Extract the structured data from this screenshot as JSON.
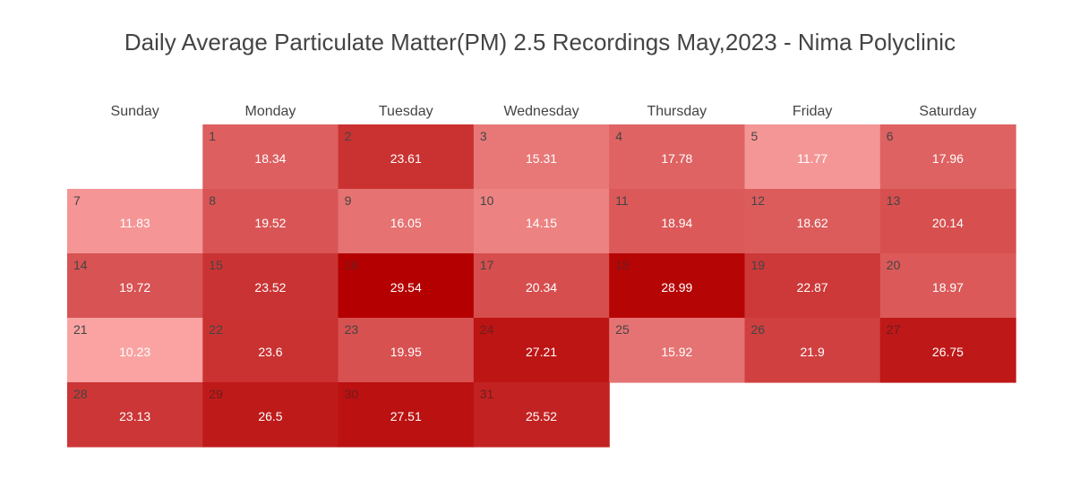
{
  "title": "Daily Average Particulate Matter(PM) 2.5 Recordings May,2023 - Nima Polyclinic",
  "colors": {
    "low": "#fba3a3",
    "high": "#b40000",
    "day_label_dark": "#444444",
    "day_label_light": "#6e1d1d",
    "value_text": "#ffffff",
    "header_text": "#444444"
  },
  "chart_data": {
    "type": "heatmap",
    "title": "Daily Average Particulate Matter(PM) 2.5 Recordings May,2023 - Nima Polyclinic",
    "weekdays": [
      "Sunday",
      "Monday",
      "Tuesday",
      "Wednesday",
      "Thursday",
      "Friday",
      "Saturday"
    ],
    "first_weekday_index": 1,
    "days": [
      1,
      2,
      3,
      4,
      5,
      6,
      7,
      8,
      9,
      10,
      11,
      12,
      13,
      14,
      15,
      16,
      17,
      18,
      19,
      20,
      21,
      22,
      23,
      24,
      25,
      26,
      27,
      28,
      29,
      30,
      31
    ],
    "values": [
      18.34,
      23.61,
      15.31,
      17.78,
      11.77,
      17.96,
      11.83,
      19.52,
      16.05,
      14.15,
      18.94,
      18.62,
      20.14,
      19.72,
      23.52,
      29.54,
      20.34,
      28.99,
      22.87,
      18.97,
      10.23,
      23.6,
      19.95,
      27.21,
      15.92,
      21.9,
      26.75,
      23.13,
      26.5,
      27.51,
      25.52
    ],
    "color_range": [
      10.23,
      29.54
    ],
    "legend": "none"
  }
}
